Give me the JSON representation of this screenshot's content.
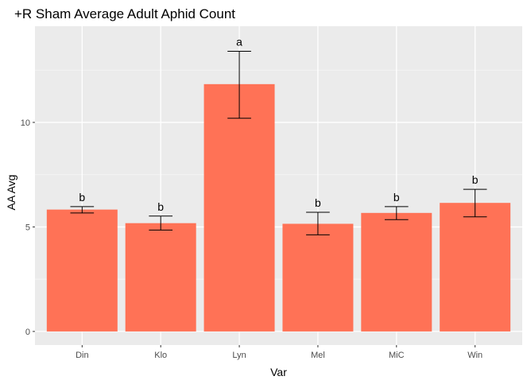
{
  "colors": {
    "bar_fill": "#FF7256",
    "panel_bg": "#EBEBEB",
    "grid_major": "#FFFFFF",
    "grid_minor": "#F5F5F5",
    "error_bar": "#000000",
    "tick_text": "#4D4D4D"
  },
  "chart_data": {
    "type": "bar",
    "title": "+R Sham Average Adult Aphid Count",
    "xlabel": "Var",
    "ylabel": "AA Avg",
    "categories": [
      "Din",
      "Klo",
      "Lyn",
      "Mel",
      "MiC",
      "Win"
    ],
    "values": [
      5.83,
      5.18,
      11.83,
      5.15,
      5.67,
      6.15
    ],
    "error_low": [
      5.67,
      4.85,
      10.2,
      4.62,
      5.35,
      5.48
    ],
    "error_high": [
      5.97,
      5.52,
      13.4,
      5.7,
      5.97,
      6.8
    ],
    "significance_labels": [
      "b",
      "b",
      "a",
      "b",
      "b",
      "b"
    ],
    "ylim": [
      -0.65,
      14.6
    ],
    "y_ticks": [
      0,
      5,
      10
    ],
    "y_tick_labels": [
      "0",
      "5",
      "10"
    ],
    "grid": true,
    "legend": "none"
  }
}
